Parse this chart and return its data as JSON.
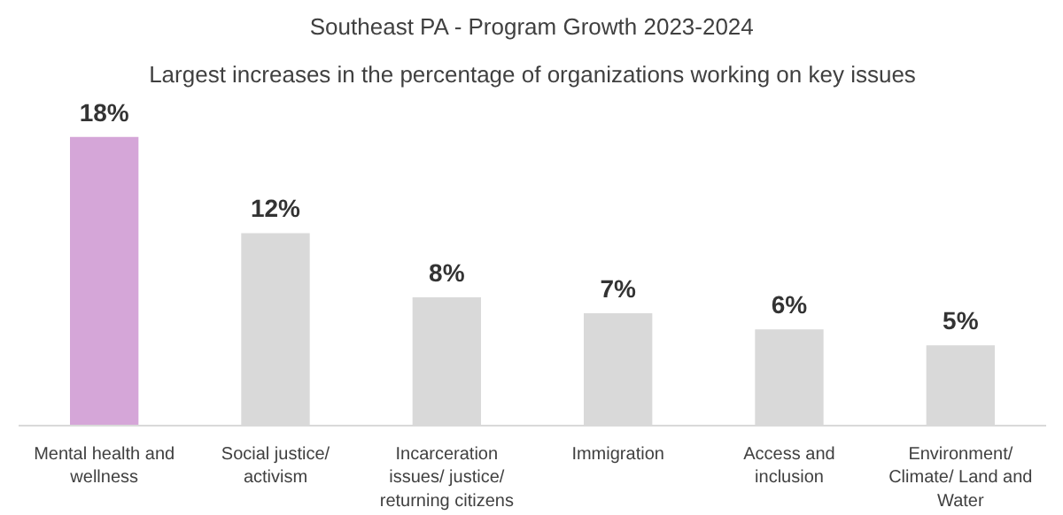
{
  "chart_data": {
    "type": "bar",
    "title": "Southeast PA - Program Growth 2023-2024",
    "subtitle": "Largest increases in the percentage of organizations working on key issues",
    "categories": [
      "Mental health and wellness",
      "Social justice/ activism",
      "Incarceration issues/ justice/ returning citizens",
      "Immigration",
      "Access and inclusion",
      "Environment/ Climate/ Land and Water"
    ],
    "values": [
      18,
      12,
      8,
      7,
      6,
      5
    ],
    "colors": [
      "#d5a6d8",
      "#d9d9d9",
      "#d9d9d9",
      "#d9d9d9",
      "#d9d9d9",
      "#d9d9d9"
    ],
    "value_labels": [
      "18%",
      "12%",
      "8%",
      "7%",
      "6%",
      "5%"
    ],
    "tick_labels": "x",
    "grid": false
  }
}
